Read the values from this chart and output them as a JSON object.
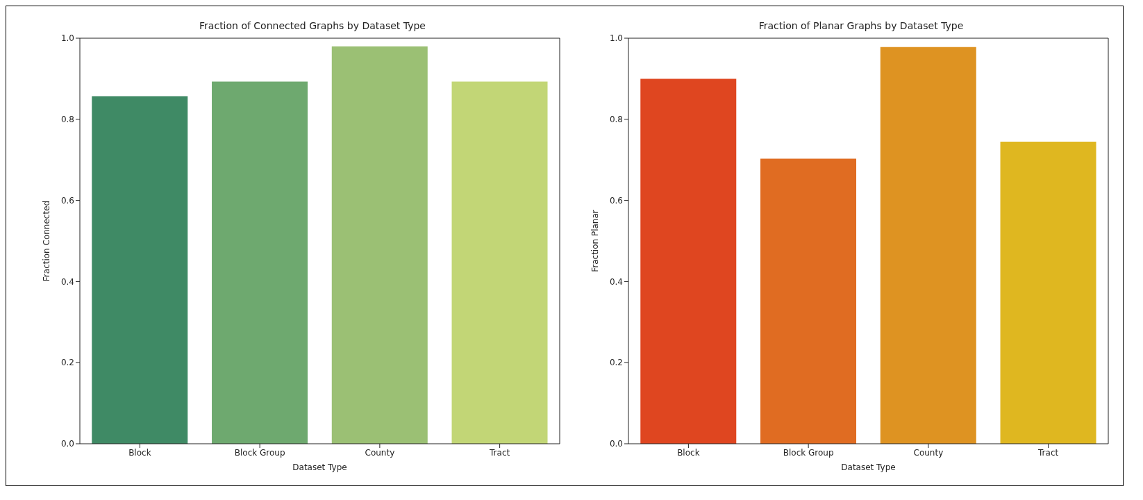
{
  "chart_data": [
    {
      "type": "bar",
      "title": "Fraction of Connected Graphs by Dataset Type",
      "xlabel": "Dataset Type",
      "ylabel": "Fraction Connected",
      "categories": [
        "Block",
        "Block Group",
        "County",
        "Tract"
      ],
      "values": [
        0.857,
        0.893,
        0.98,
        0.893
      ],
      "colors": [
        "#3f8a65",
        "#6ea96f",
        "#9bc074",
        "#c2d676"
      ],
      "ylim": [
        0,
        1
      ],
      "yticks": [
        {
          "value": 0,
          "label": "0.0"
        },
        {
          "value": 0.2,
          "label": "0.2"
        },
        {
          "value": 0.4,
          "label": "0.4"
        },
        {
          "value": 0.6,
          "label": "0.6"
        },
        {
          "value": 0.8,
          "label": "0.8"
        },
        {
          "value": 1,
          "label": "1.0"
        }
      ]
    },
    {
      "type": "bar",
      "title": "Fraction of Planar Graphs by Dataset Type",
      "xlabel": "Dataset Type",
      "ylabel": "Fraction Planar",
      "categories": [
        "Block",
        "Block Group",
        "County",
        "Tract"
      ],
      "values": [
        0.9,
        0.703,
        0.978,
        0.745
      ],
      "colors": [
        "#df4620",
        "#e06c22",
        "#de9322",
        "#dfb720"
      ],
      "ylim": [
        0,
        1
      ],
      "yticks": [
        {
          "value": 0,
          "label": "0.0"
        },
        {
          "value": 0.2,
          "label": "0.2"
        },
        {
          "value": 0.4,
          "label": "0.4"
        },
        {
          "value": 0.6,
          "label": "0.6"
        },
        {
          "value": 0.8,
          "label": "0.8"
        },
        {
          "value": 1,
          "label": "1.0"
        }
      ]
    }
  ]
}
